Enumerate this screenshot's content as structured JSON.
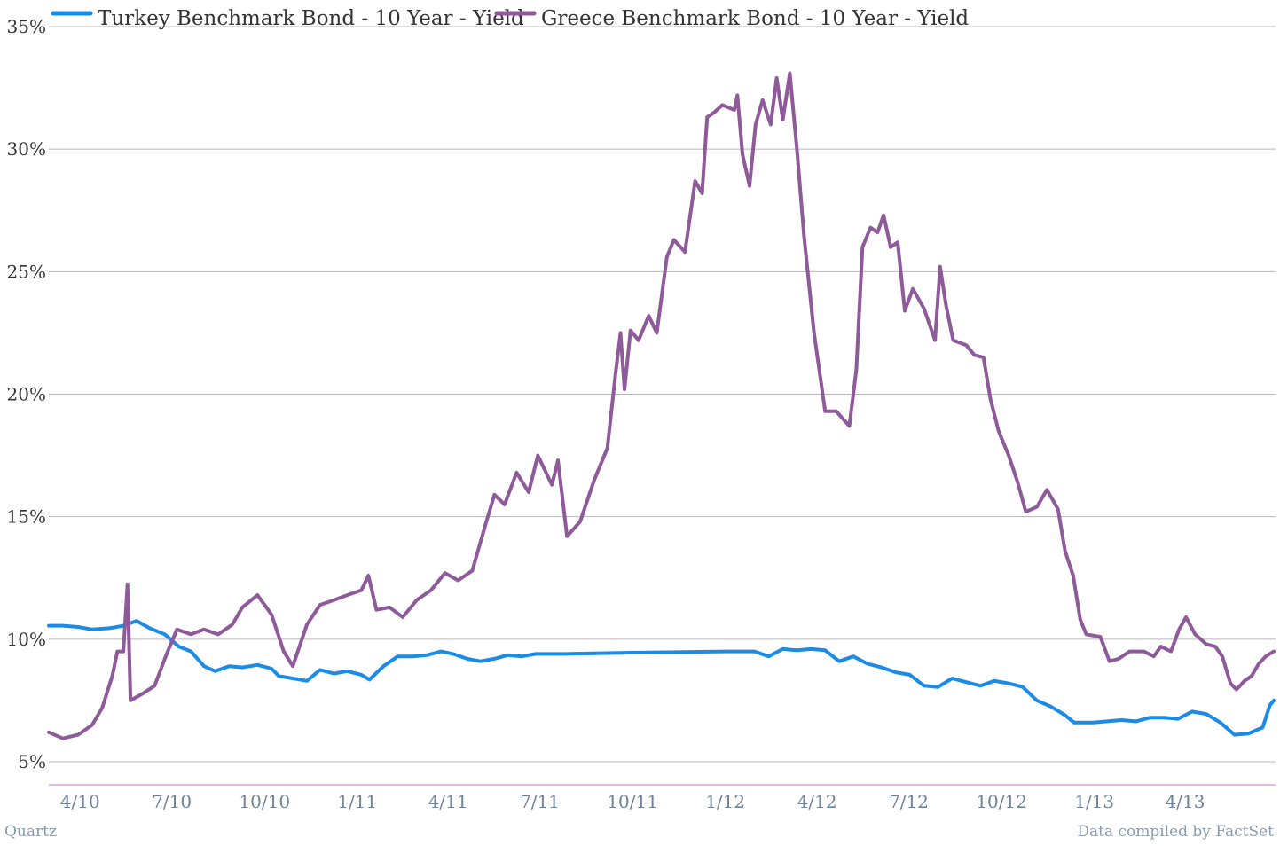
{
  "chart_data": {
    "type": "line",
    "title": "",
    "xlabel": "",
    "ylabel": "",
    "ylim": [
      4,
      35
    ],
    "y_ticks": [
      {
        "value": 5,
        "label": "5%"
      },
      {
        "value": 10,
        "label": "10%"
      },
      {
        "value": 15,
        "label": "15%"
      },
      {
        "value": 20,
        "label": "20%"
      },
      {
        "value": 25,
        "label": "25%"
      },
      {
        "value": 30,
        "label": "30%"
      },
      {
        "value": 35,
        "label": "35%"
      }
    ],
    "xlim": [
      "2010-03-01",
      "2013-06-28"
    ],
    "x_ticks": [
      {
        "date": "2010-04-01",
        "label": "4/10"
      },
      {
        "date": "2010-07-01",
        "label": "7/10"
      },
      {
        "date": "2010-10-01",
        "label": "10/10"
      },
      {
        "date": "2011-01-01",
        "label": "1/11"
      },
      {
        "date": "2011-04-01",
        "label": "4/11"
      },
      {
        "date": "2011-07-01",
        "label": "7/11"
      },
      {
        "date": "2011-10-01",
        "label": "10/11"
      },
      {
        "date": "2012-01-01",
        "label": "1/12"
      },
      {
        "date": "2012-04-01",
        "label": "4/12"
      },
      {
        "date": "2012-07-01",
        "label": "7/12"
      },
      {
        "date": "2012-10-01",
        "label": "10/12"
      },
      {
        "date": "2013-01-01",
        "label": "1/13"
      },
      {
        "date": "2013-04-01",
        "label": "4/13"
      }
    ],
    "grid": true,
    "legend_position": "top-left",
    "series": [
      {
        "name": "Turkey Benchmark Bond - 10 Year - Yield",
        "color": "#1a8be6",
        "points": [
          [
            "2010-03-01",
            10.55
          ],
          [
            "2010-03-15",
            10.55
          ],
          [
            "2010-03-30",
            10.5
          ],
          [
            "2010-04-13",
            10.4
          ],
          [
            "2010-04-30",
            10.45
          ],
          [
            "2010-05-14",
            10.55
          ],
          [
            "2010-05-27",
            10.75
          ],
          [
            "2010-06-09",
            10.45
          ],
          [
            "2010-06-24",
            10.2
          ],
          [
            "2010-07-08",
            9.7
          ],
          [
            "2010-07-20",
            9.5
          ],
          [
            "2010-08-02",
            8.9
          ],
          [
            "2010-08-13",
            8.7
          ],
          [
            "2010-08-27",
            8.9
          ],
          [
            "2010-09-09",
            8.85
          ],
          [
            "2010-09-24",
            8.95
          ],
          [
            "2010-10-08",
            8.8
          ],
          [
            "2010-10-15",
            8.5
          ],
          [
            "2010-10-29",
            8.4
          ],
          [
            "2010-11-12",
            8.3
          ],
          [
            "2010-11-25",
            8.75
          ],
          [
            "2010-12-09",
            8.6
          ],
          [
            "2010-12-22",
            8.7
          ],
          [
            "2011-01-05",
            8.55
          ],
          [
            "2011-01-13",
            8.35
          ],
          [
            "2011-01-27",
            8.9
          ],
          [
            "2011-02-10",
            9.3
          ],
          [
            "2011-02-25",
            9.3
          ],
          [
            "2011-03-11",
            9.35
          ],
          [
            "2011-03-25",
            9.5
          ],
          [
            "2011-04-06",
            9.4
          ],
          [
            "2011-04-20",
            9.2
          ],
          [
            "2011-05-03",
            9.1
          ],
          [
            "2011-05-17",
            9.2
          ],
          [
            "2011-05-30",
            9.35
          ],
          [
            "2011-06-13",
            9.3
          ],
          [
            "2011-06-27",
            9.4
          ],
          [
            "2011-07-11",
            9.4
          ],
          [
            "2011-07-25",
            9.4
          ],
          [
            "2011-10-01",
            9.45
          ],
          [
            "2012-01-01",
            9.5
          ],
          [
            "2012-01-30",
            9.5
          ],
          [
            "2012-02-13",
            9.3
          ],
          [
            "2012-02-27",
            9.6
          ],
          [
            "2012-03-12",
            9.55
          ],
          [
            "2012-03-26",
            9.6
          ],
          [
            "2012-04-09",
            9.55
          ],
          [
            "2012-04-23",
            9.1
          ],
          [
            "2012-05-07",
            9.3
          ],
          [
            "2012-05-21",
            9.0
          ],
          [
            "2012-06-04",
            8.85
          ],
          [
            "2012-06-18",
            8.65
          ],
          [
            "2012-07-02",
            8.55
          ],
          [
            "2012-07-16",
            8.1
          ],
          [
            "2012-07-30",
            8.05
          ],
          [
            "2012-08-13",
            8.4
          ],
          [
            "2012-08-27",
            8.25
          ],
          [
            "2012-09-10",
            8.1
          ],
          [
            "2012-09-24",
            8.3
          ],
          [
            "2012-10-08",
            8.2
          ],
          [
            "2012-10-22",
            8.05
          ],
          [
            "2012-11-05",
            7.5
          ],
          [
            "2012-11-19",
            7.25
          ],
          [
            "2012-12-03",
            6.9
          ],
          [
            "2012-12-12",
            6.6
          ],
          [
            "2012-12-31",
            6.6
          ],
          [
            "2013-01-14",
            6.65
          ],
          [
            "2013-01-28",
            6.7
          ],
          [
            "2013-02-11",
            6.65
          ],
          [
            "2013-02-25",
            6.8
          ],
          [
            "2013-03-11",
            6.8
          ],
          [
            "2013-03-25",
            6.75
          ],
          [
            "2013-04-08",
            7.05
          ],
          [
            "2013-04-22",
            6.95
          ],
          [
            "2013-05-06",
            6.6
          ],
          [
            "2013-05-20",
            6.1
          ],
          [
            "2013-06-03",
            6.15
          ],
          [
            "2013-06-17",
            6.4
          ],
          [
            "2013-06-24",
            7.3
          ],
          [
            "2013-06-28",
            7.5
          ]
        ]
      },
      {
        "name": "Greece Benchmark Bond - 10 Year - Yield",
        "color": "#8e5a99",
        "points": [
          [
            "2010-03-01",
            6.2
          ],
          [
            "2010-03-15",
            5.95
          ],
          [
            "2010-03-30",
            6.1
          ],
          [
            "2010-04-13",
            6.5
          ],
          [
            "2010-04-23",
            7.2
          ],
          [
            "2010-05-03",
            8.5
          ],
          [
            "2010-05-08",
            9.5
          ],
          [
            "2010-05-14",
            9.5
          ],
          [
            "2010-05-18",
            12.25
          ],
          [
            "2010-05-21",
            7.5
          ],
          [
            "2010-06-03",
            7.8
          ],
          [
            "2010-06-14",
            8.1
          ],
          [
            "2010-06-25",
            9.3
          ],
          [
            "2010-07-06",
            10.4
          ],
          [
            "2010-07-20",
            10.2
          ],
          [
            "2010-08-02",
            10.4
          ],
          [
            "2010-08-16",
            10.2
          ],
          [
            "2010-08-30",
            10.6
          ],
          [
            "2010-09-09",
            11.3
          ],
          [
            "2010-09-24",
            11.8
          ],
          [
            "2010-10-08",
            11.0
          ],
          [
            "2010-10-20",
            9.5
          ],
          [
            "2010-10-29",
            8.9
          ],
          [
            "2010-11-12",
            10.6
          ],
          [
            "2010-11-25",
            11.4
          ],
          [
            "2010-12-09",
            11.6
          ],
          [
            "2010-12-22",
            11.8
          ],
          [
            "2011-01-05",
            12.0
          ],
          [
            "2011-01-12",
            12.6
          ],
          [
            "2011-01-20",
            11.2
          ],
          [
            "2011-02-02",
            11.3
          ],
          [
            "2011-02-15",
            10.9
          ],
          [
            "2011-03-01",
            11.6
          ],
          [
            "2011-03-15",
            12.0
          ],
          [
            "2011-03-29",
            12.7
          ],
          [
            "2011-04-11",
            12.4
          ],
          [
            "2011-04-25",
            12.8
          ],
          [
            "2011-05-09",
            14.8
          ],
          [
            "2011-05-17",
            15.9
          ],
          [
            "2011-05-27",
            15.5
          ],
          [
            "2011-06-08",
            16.8
          ],
          [
            "2011-06-20",
            16.0
          ],
          [
            "2011-06-29",
            17.5
          ],
          [
            "2011-07-13",
            16.3
          ],
          [
            "2011-07-19",
            17.3
          ],
          [
            "2011-07-28",
            14.2
          ],
          [
            "2011-08-10",
            14.8
          ],
          [
            "2011-08-24",
            16.5
          ],
          [
            "2011-09-06",
            17.8
          ],
          [
            "2011-09-14",
            20.8
          ],
          [
            "2011-09-19",
            22.5
          ],
          [
            "2011-09-23",
            20.2
          ],
          [
            "2011-09-29",
            22.6
          ],
          [
            "2011-10-07",
            22.2
          ],
          [
            "2011-10-17",
            23.2
          ],
          [
            "2011-10-25",
            22.5
          ],
          [
            "2011-11-04",
            25.6
          ],
          [
            "2011-11-11",
            26.3
          ],
          [
            "2011-11-22",
            25.8
          ],
          [
            "2011-12-02",
            28.7
          ],
          [
            "2011-12-09",
            28.2
          ],
          [
            "2011-12-14",
            31.3
          ],
          [
            "2011-12-21",
            31.5
          ],
          [
            "2011-12-29",
            31.8
          ],
          [
            "2012-01-10",
            31.6
          ],
          [
            "2012-01-13",
            32.2
          ],
          [
            "2012-01-18",
            29.8
          ],
          [
            "2012-01-25",
            28.5
          ],
          [
            "2012-01-31",
            31.0
          ],
          [
            "2012-02-07",
            32.0
          ],
          [
            "2012-02-15",
            31.0
          ],
          [
            "2012-02-21",
            32.9
          ],
          [
            "2012-02-27",
            31.2
          ],
          [
            "2012-03-05",
            33.1
          ],
          [
            "2012-03-12",
            30.0
          ],
          [
            "2012-03-19",
            26.5
          ],
          [
            "2012-03-29",
            22.5
          ],
          [
            "2012-04-09",
            19.3
          ],
          [
            "2012-04-20",
            19.3
          ],
          [
            "2012-05-03",
            18.7
          ],
          [
            "2012-05-10",
            21.0
          ],
          [
            "2012-05-16",
            26.0
          ],
          [
            "2012-05-24",
            26.8
          ],
          [
            "2012-05-31",
            26.6
          ],
          [
            "2012-06-06",
            27.3
          ],
          [
            "2012-06-13",
            26.0
          ],
          [
            "2012-06-20",
            26.2
          ],
          [
            "2012-06-27",
            23.4
          ],
          [
            "2012-07-05",
            24.3
          ],
          [
            "2012-07-16",
            23.5
          ],
          [
            "2012-07-27",
            22.2
          ],
          [
            "2012-08-01",
            25.2
          ],
          [
            "2012-08-07",
            23.6
          ],
          [
            "2012-08-14",
            22.2
          ],
          [
            "2012-08-27",
            22.0
          ],
          [
            "2012-09-04",
            21.6
          ],
          [
            "2012-09-13",
            21.5
          ],
          [
            "2012-09-20",
            19.8
          ],
          [
            "2012-09-28",
            18.5
          ],
          [
            "2012-10-08",
            17.5
          ],
          [
            "2012-10-17",
            16.4
          ],
          [
            "2012-10-25",
            15.2
          ],
          [
            "2012-11-05",
            15.4
          ],
          [
            "2012-11-15",
            16.1
          ],
          [
            "2012-11-26",
            15.3
          ],
          [
            "2012-12-03",
            13.6
          ],
          [
            "2012-12-11",
            12.6
          ],
          [
            "2012-12-18",
            10.8
          ],
          [
            "2012-12-24",
            10.2
          ],
          [
            "2013-01-07",
            10.1
          ],
          [
            "2013-01-16",
            9.1
          ],
          [
            "2013-01-25",
            9.2
          ],
          [
            "2013-02-05",
            9.5
          ],
          [
            "2013-02-19",
            9.5
          ],
          [
            "2013-03-01",
            9.3
          ],
          [
            "2013-03-08",
            9.7
          ],
          [
            "2013-03-18",
            9.5
          ],
          [
            "2013-03-26",
            10.4
          ],
          [
            "2013-04-02",
            10.9
          ],
          [
            "2013-04-11",
            10.2
          ],
          [
            "2013-04-22",
            9.8
          ],
          [
            "2013-05-01",
            9.7
          ],
          [
            "2013-05-08",
            9.3
          ],
          [
            "2013-05-16",
            8.2
          ],
          [
            "2013-05-22",
            7.95
          ],
          [
            "2013-05-30",
            8.3
          ],
          [
            "2013-06-06",
            8.5
          ],
          [
            "2013-06-13",
            9.0
          ],
          [
            "2013-06-20",
            9.3
          ],
          [
            "2013-06-28",
            9.5
          ]
        ]
      }
    ],
    "source_left": "Quartz",
    "source_right": "Data compiled by FactSet"
  }
}
